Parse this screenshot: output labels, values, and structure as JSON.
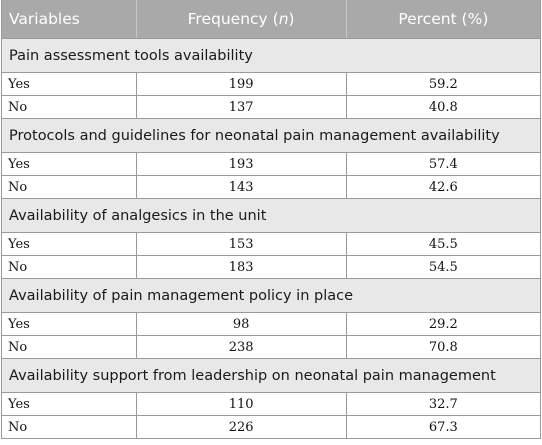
{
  "header": {
    "variables": "Variables",
    "frequency_prefix": "Frequency (",
    "frequency_italic": "n",
    "frequency_suffix": ")",
    "percent": "Percent (%)"
  },
  "sections": [
    {
      "title": "Pain assessment tools availability",
      "rows": [
        {
          "label": "Yes",
          "frequency": "199",
          "percent": "59.2"
        },
        {
          "label": "No",
          "frequency": "137",
          "percent": "40.8"
        }
      ]
    },
    {
      "title": "Protocols and guidelines for neonatal pain management availability",
      "rows": [
        {
          "label": "Yes",
          "frequency": "193",
          "percent": "57.4"
        },
        {
          "label": "No",
          "frequency": "143",
          "percent": "42.6"
        }
      ]
    },
    {
      "title": "Availability of analgesics in the unit",
      "rows": [
        {
          "label": "Yes",
          "frequency": "153",
          "percent": "45.5"
        },
        {
          "label": "No",
          "frequency": "183",
          "percent": "54.5"
        }
      ]
    },
    {
      "title": "Availability of pain management policy in place",
      "rows": [
        {
          "label": "Yes",
          "frequency": "98",
          "percent": "29.2"
        },
        {
          "label": "No",
          "frequency": "238",
          "percent": "70.8"
        }
      ]
    },
    {
      "title": "Availability support from leadership on neonatal pain management",
      "rows": [
        {
          "label": "Yes",
          "frequency": "110",
          "percent": "32.7"
        },
        {
          "label": "No",
          "frequency": "226",
          "percent": "67.3"
        }
      ]
    }
  ]
}
